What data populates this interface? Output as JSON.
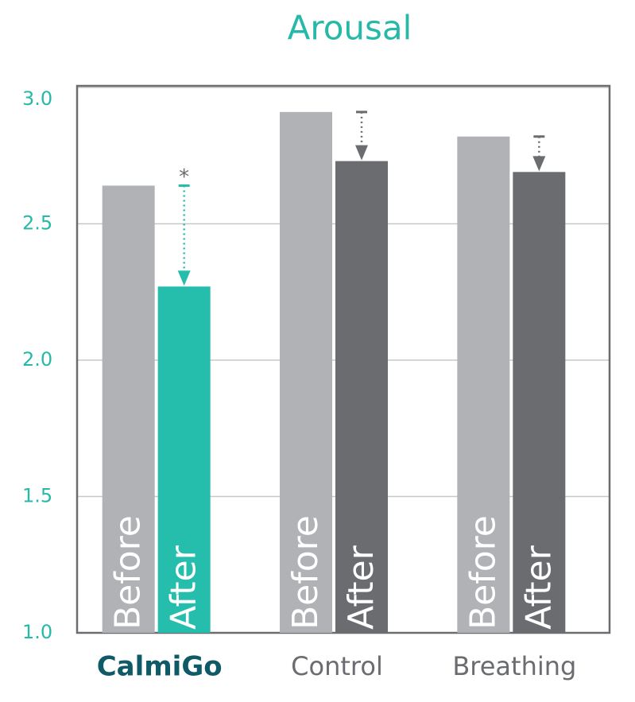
{
  "chart_data": {
    "type": "bar",
    "title": "Arousal",
    "categories": [
      "CalmiGo",
      "Control",
      "Breathing"
    ],
    "series": [
      {
        "name": "Before",
        "color": "#b1b2b6",
        "values": [
          2.64,
          2.91,
          2.82
        ]
      },
      {
        "name": "After",
        "colors": [
          "#25beac",
          "#6b6c70",
          "#6b6c70"
        ],
        "values": [
          2.27,
          2.73,
          2.69
        ]
      }
    ],
    "annotations": [
      "*",
      null,
      null
    ],
    "ylim": [
      1.0,
      3.0
    ],
    "yticks": [
      {
        "value": 1.0,
        "label": "1.0"
      },
      {
        "value": 1.5,
        "label": "1.5"
      },
      {
        "value": 2.0,
        "label": "2.0"
      },
      {
        "value": 2.5,
        "label": "2.5"
      },
      {
        "value": 3.0,
        "label": "3.0"
      }
    ],
    "grid": true
  }
}
